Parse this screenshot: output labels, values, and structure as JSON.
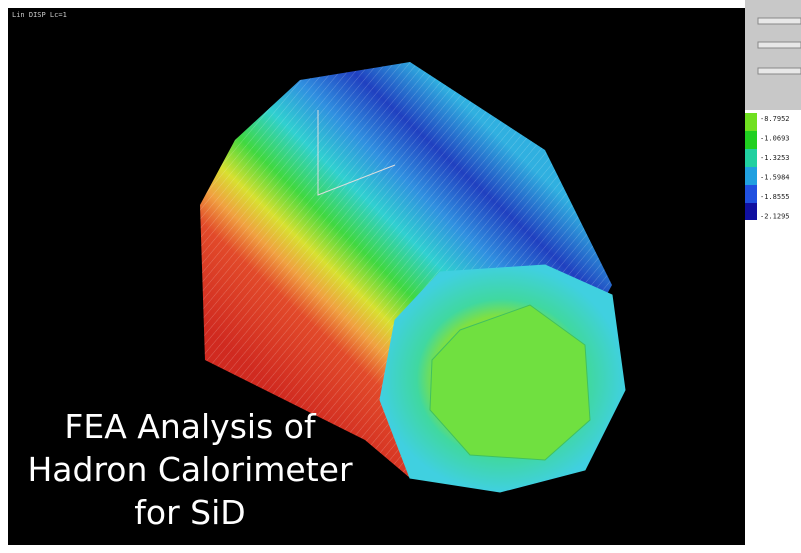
{
  "viewport": {
    "label": "Lin DISP Lc=1"
  },
  "legend": {
    "labels": [
      "-8.7952",
      "-1.0693",
      "-1.3253",
      "-1.5984",
      "-1.8555",
      "-2.1295"
    ]
  },
  "caption": {
    "lines": [
      "FEA Analysis of",
      "Hadron Calorimeter",
      "for SiD"
    ]
  }
}
